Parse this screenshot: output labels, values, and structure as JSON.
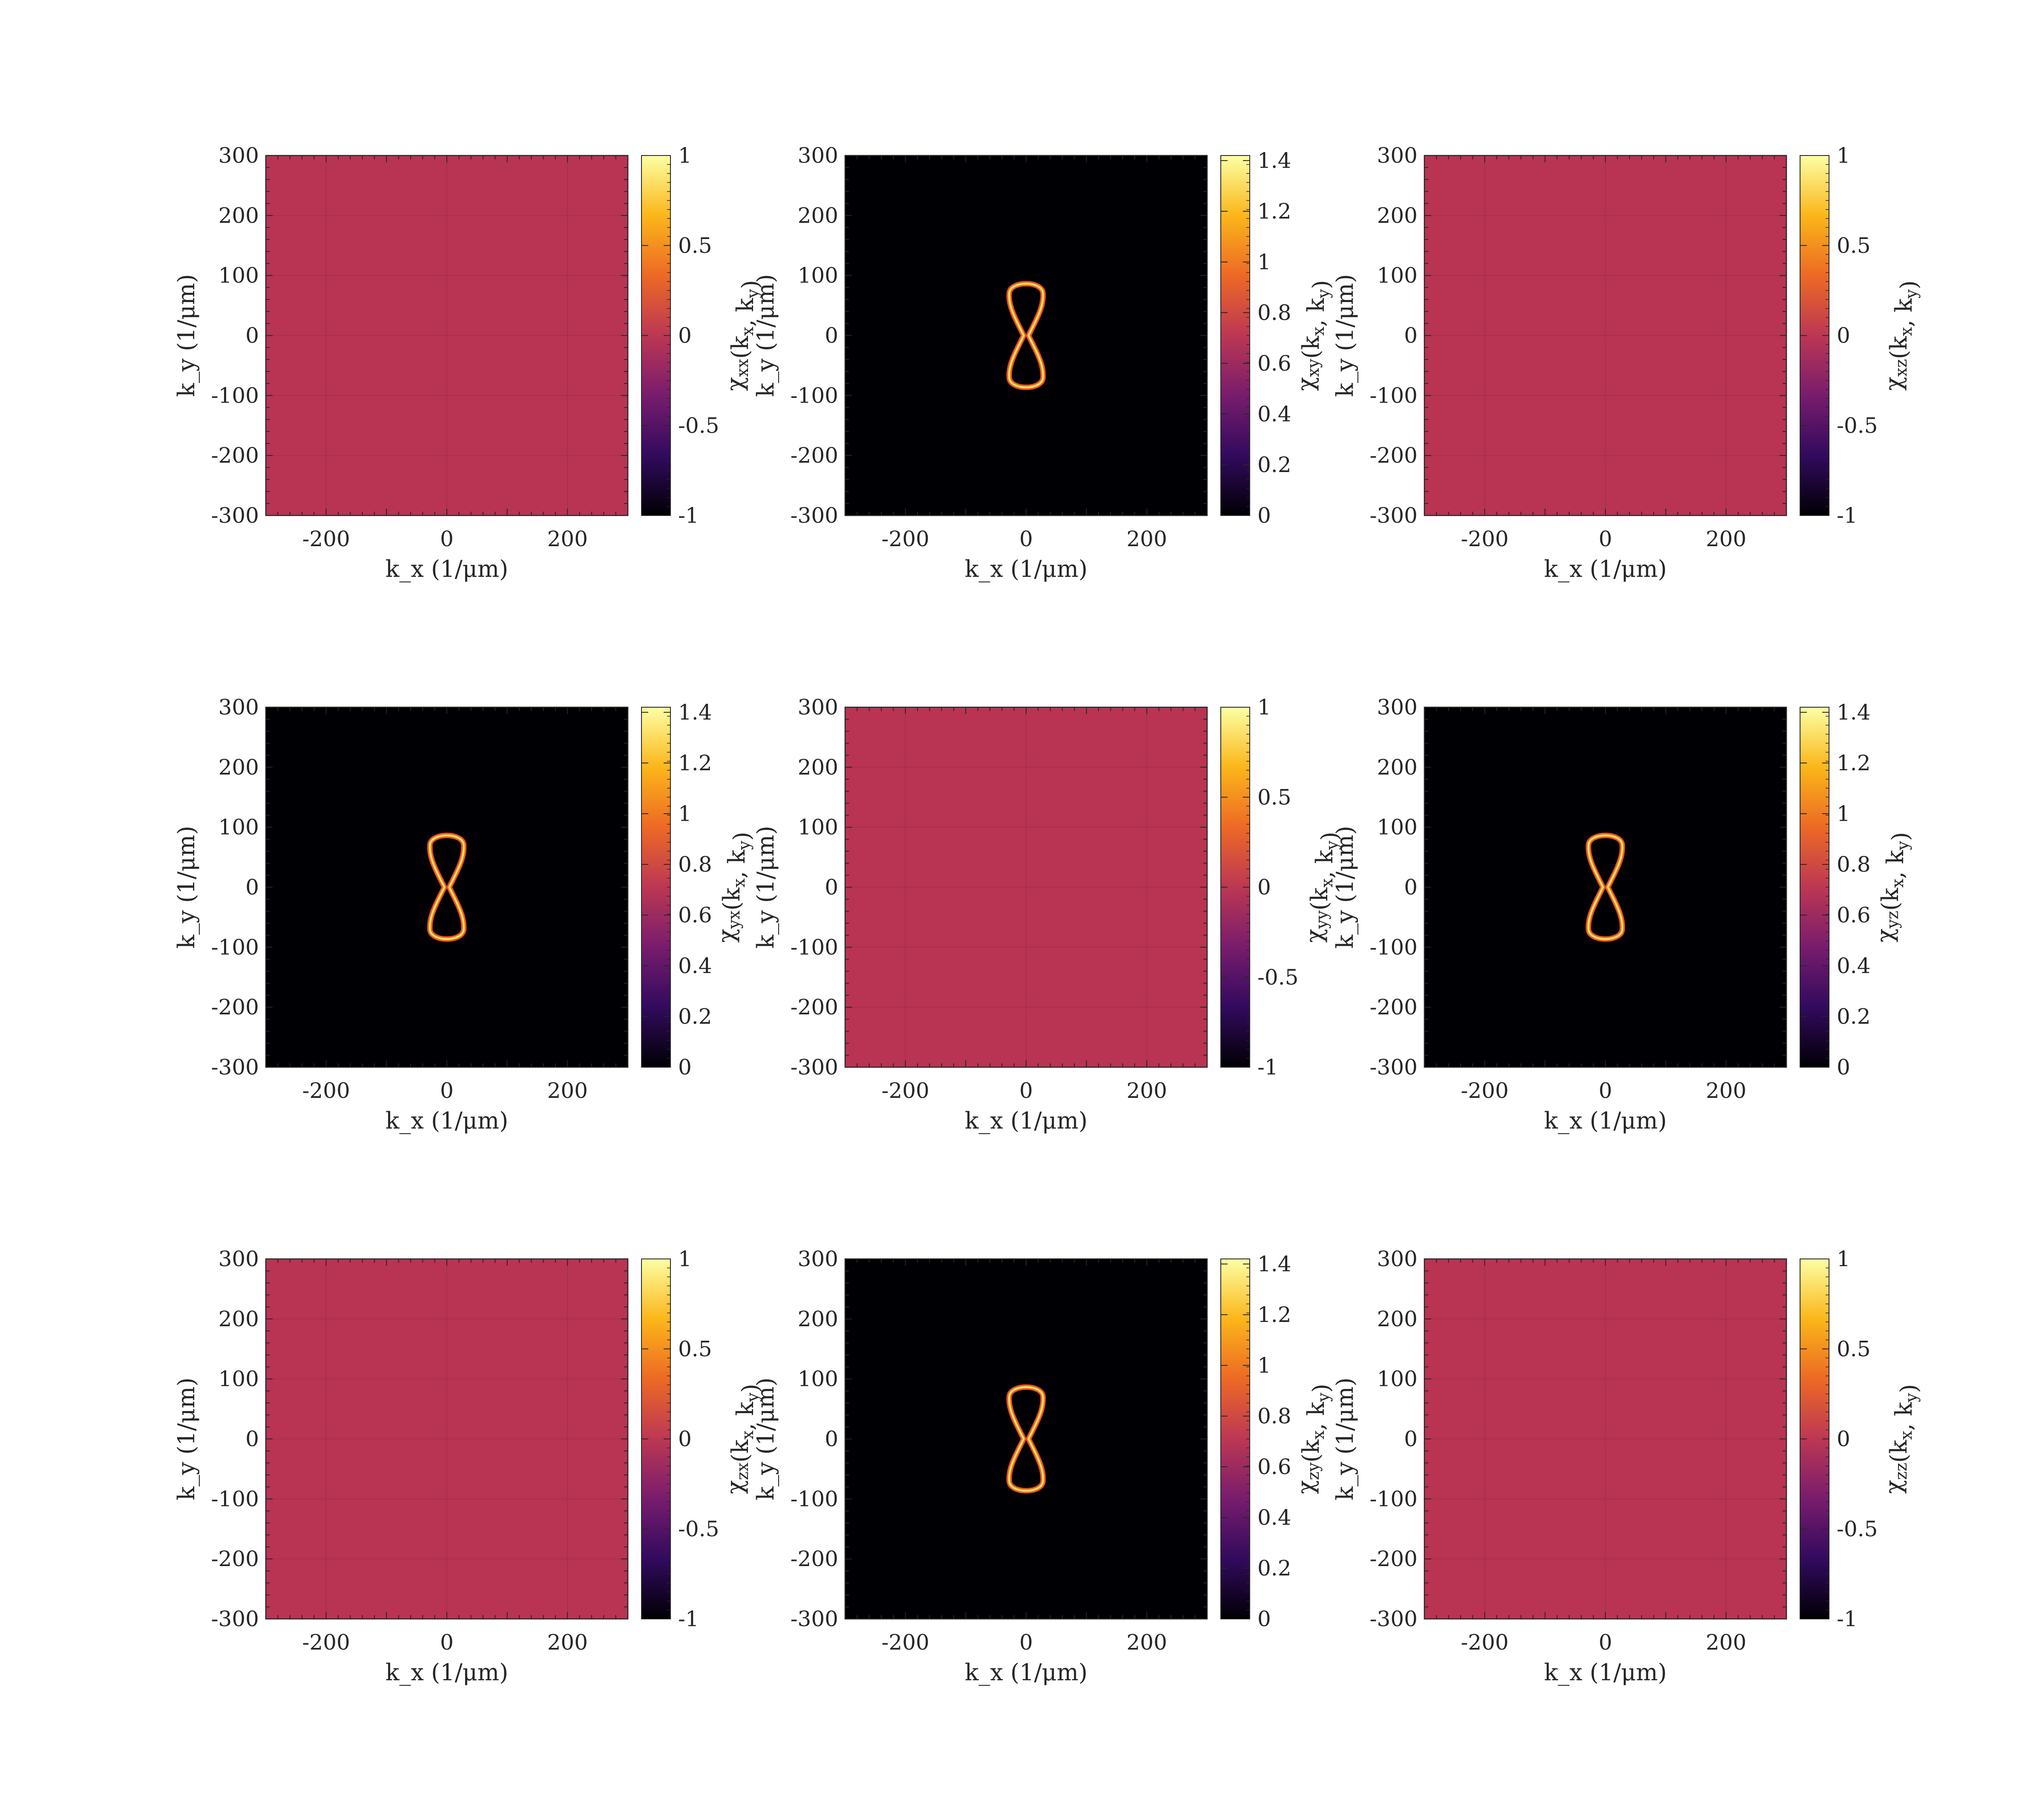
{
  "figure": {
    "background": "#ffffff",
    "colormap": "inferno",
    "colormap_stops": [
      "#000004",
      "#320a5e",
      "#781c6d",
      "#bc3754",
      "#ed6925",
      "#fbb61a",
      "#fcffa4"
    ],
    "uniform_fill": "#b83452",
    "ring_color": "#f7a21c"
  },
  "chart_data": [
    {
      "type": "heatmap",
      "panel": "xx",
      "row": 0,
      "col": 0,
      "xlabel": "k_x (1/μm)",
      "ylabel": "k_y (1/μm)",
      "xlim": [
        -300,
        300
      ],
      "ylim": [
        -300,
        300
      ],
      "xticks": [
        "-200",
        "0",
        "200"
      ],
      "yticks": [
        "-300",
        "-200",
        "-100",
        "0",
        "100",
        "200",
        "300"
      ],
      "colorbar": {
        "label": "χ_xx(k_x, k_y)",
        "label_parts": [
          [
            "χ",
            "xx"
          ],
          [
            "(k",
            "x"
          ],
          [
            ", k",
            "y"
          ],
          [
            ")",
            ""
          ]
        ],
        "range": [
          -1,
          1
        ],
        "ticks": [
          "-1",
          "-0.5",
          "0",
          "0.5",
          "1"
        ]
      },
      "field": {
        "kind": "uniform",
        "value": 0
      }
    },
    {
      "type": "heatmap",
      "panel": "xy",
      "row": 0,
      "col": 1,
      "xlabel": "k_x (1/μm)",
      "ylabel": "k_y (1/μm)",
      "xlim": [
        -300,
        300
      ],
      "ylim": [
        -300,
        300
      ],
      "xticks": [
        "-200",
        "0",
        "200"
      ],
      "yticks": [
        "-300",
        "-200",
        "-100",
        "0",
        "100",
        "200",
        "300"
      ],
      "colorbar": {
        "label": "χ_xy(k_x, k_y)",
        "label_parts": [
          [
            "χ",
            "xy"
          ],
          [
            "(k",
            "x"
          ],
          [
            ", k",
            "y"
          ],
          [
            ")",
            ""
          ]
        ],
        "range": [
          0,
          1.42
        ],
        "ticks": [
          "0",
          "0.2",
          "0.4",
          "0.6",
          "0.8",
          "1",
          "1.2",
          "1.4"
        ]
      },
      "field": {
        "kind": "peanut_ring",
        "background_value": 0,
        "ring_value": 1.1,
        "extent_ky": [
          -90,
          90
        ],
        "lobe_halfwidth_kx": 28,
        "waist_kx": 4
      }
    },
    {
      "type": "heatmap",
      "panel": "xz",
      "row": 0,
      "col": 2,
      "xlabel": "k_x (1/μm)",
      "ylabel": "k_y (1/μm)",
      "xlim": [
        -300,
        300
      ],
      "ylim": [
        -300,
        300
      ],
      "xticks": [
        "-200",
        "0",
        "200"
      ],
      "yticks": [
        "-300",
        "-200",
        "-100",
        "0",
        "100",
        "200",
        "300"
      ],
      "colorbar": {
        "label": "χ_xz(k_x, k_y)",
        "label_parts": [
          [
            "χ",
            "xz"
          ],
          [
            "(k",
            "x"
          ],
          [
            ", k",
            "y"
          ],
          [
            ")",
            ""
          ]
        ],
        "range": [
          -1,
          1
        ],
        "ticks": [
          "-1",
          "-0.5",
          "0",
          "0.5",
          "1"
        ]
      },
      "field": {
        "kind": "uniform",
        "value": 0
      }
    },
    {
      "type": "heatmap",
      "panel": "yx",
      "row": 1,
      "col": 0,
      "xlabel": "k_x (1/μm)",
      "ylabel": "k_y (1/μm)",
      "xlim": [
        -300,
        300
      ],
      "ylim": [
        -300,
        300
      ],
      "xticks": [
        "-200",
        "0",
        "200"
      ],
      "yticks": [
        "-300",
        "-200",
        "-100",
        "0",
        "100",
        "200",
        "300"
      ],
      "colorbar": {
        "label": "χ_yx(k_x, k_y)",
        "label_parts": [
          [
            "χ",
            "yx"
          ],
          [
            "(k",
            "x"
          ],
          [
            ", k",
            "y"
          ],
          [
            ")",
            ""
          ]
        ],
        "range": [
          0,
          1.42
        ],
        "ticks": [
          "0",
          "0.2",
          "0.4",
          "0.6",
          "0.8",
          "1",
          "1.2",
          "1.4"
        ]
      },
      "field": {
        "kind": "peanut_ring",
        "background_value": 0,
        "ring_value": 1.1,
        "extent_ky": [
          -90,
          90
        ],
        "lobe_halfwidth_kx": 28,
        "waist_kx": 4
      }
    },
    {
      "type": "heatmap",
      "panel": "yy",
      "row": 1,
      "col": 1,
      "xlabel": "k_x (1/μm)",
      "ylabel": "k_y (1/μm)",
      "xlim": [
        -300,
        300
      ],
      "ylim": [
        -300,
        300
      ],
      "xticks": [
        "-200",
        "0",
        "200"
      ],
      "yticks": [
        "-300",
        "-200",
        "-100",
        "0",
        "100",
        "200",
        "300"
      ],
      "colorbar": {
        "label": "χ_yy(k_x, k_y)",
        "label_parts": [
          [
            "χ",
            "yy"
          ],
          [
            "(k",
            "x"
          ],
          [
            ", k",
            "y"
          ],
          [
            ")",
            ""
          ]
        ],
        "range": [
          -1,
          1
        ],
        "ticks": [
          "-1",
          "-0.5",
          "0",
          "0.5",
          "1"
        ]
      },
      "field": {
        "kind": "uniform",
        "value": 0
      }
    },
    {
      "type": "heatmap",
      "panel": "yz",
      "row": 1,
      "col": 2,
      "xlabel": "k_x (1/μm)",
      "ylabel": "k_y (1/μm)",
      "xlim": [
        -300,
        300
      ],
      "ylim": [
        -300,
        300
      ],
      "xticks": [
        "-200",
        "0",
        "200"
      ],
      "yticks": [
        "-300",
        "-200",
        "-100",
        "0",
        "100",
        "200",
        "300"
      ],
      "colorbar": {
        "label": "χ_yz(k_x, k_y)",
        "label_parts": [
          [
            "χ",
            "yz"
          ],
          [
            "(k",
            "x"
          ],
          [
            ", k",
            "y"
          ],
          [
            ")",
            ""
          ]
        ],
        "range": [
          0,
          1.42
        ],
        "ticks": [
          "0",
          "0.2",
          "0.4",
          "0.6",
          "0.8",
          "1",
          "1.2",
          "1.4"
        ]
      },
      "field": {
        "kind": "peanut_ring",
        "background_value": 0,
        "ring_value": 1.1,
        "extent_ky": [
          -90,
          90
        ],
        "lobe_halfwidth_kx": 28,
        "waist_kx": 4
      }
    },
    {
      "type": "heatmap",
      "panel": "zx",
      "row": 2,
      "col": 0,
      "xlabel": "k_x (1/μm)",
      "ylabel": "k_y (1/μm)",
      "xlim": [
        -300,
        300
      ],
      "ylim": [
        -300,
        300
      ],
      "xticks": [
        "-200",
        "0",
        "200"
      ],
      "yticks": [
        "-300",
        "-200",
        "-100",
        "0",
        "100",
        "200",
        "300"
      ],
      "colorbar": {
        "label": "χ_zx(k_x, k_y)",
        "label_parts": [
          [
            "χ",
            "zx"
          ],
          [
            "(k",
            "x"
          ],
          [
            ", k",
            "y"
          ],
          [
            ")",
            ""
          ]
        ],
        "range": [
          -1,
          1
        ],
        "ticks": [
          "-1",
          "-0.5",
          "0",
          "0.5",
          "1"
        ]
      },
      "field": {
        "kind": "uniform",
        "value": 0
      }
    },
    {
      "type": "heatmap",
      "panel": "zy",
      "row": 2,
      "col": 1,
      "xlabel": "k_x (1/μm)",
      "ylabel": "k_y (1/μm)",
      "xlim": [
        -300,
        300
      ],
      "ylim": [
        -300,
        300
      ],
      "xticks": [
        "-200",
        "0",
        "200"
      ],
      "yticks": [
        "-300",
        "-200",
        "-100",
        "0",
        "100",
        "200",
        "300"
      ],
      "colorbar": {
        "label": "χ_zy(k_x, k_y)",
        "label_parts": [
          [
            "χ",
            "zy"
          ],
          [
            "(k",
            "x"
          ],
          [
            ", k",
            "y"
          ],
          [
            ")",
            ""
          ]
        ],
        "range": [
          0,
          1.42
        ],
        "ticks": [
          "0",
          "0.2",
          "0.4",
          "0.6",
          "0.8",
          "1",
          "1.2",
          "1.4"
        ]
      },
      "field": {
        "kind": "peanut_ring",
        "background_value": 0,
        "ring_value": 1.1,
        "extent_ky": [
          -90,
          90
        ],
        "lobe_halfwidth_kx": 28,
        "waist_kx": 4
      }
    },
    {
      "type": "heatmap",
      "panel": "zz",
      "row": 2,
      "col": 2,
      "xlabel": "k_x (1/μm)",
      "ylabel": "k_y (1/μm)",
      "xlim": [
        -300,
        300
      ],
      "ylim": [
        -300,
        300
      ],
      "xticks": [
        "-200",
        "0",
        "200"
      ],
      "yticks": [
        "-300",
        "-200",
        "-100",
        "0",
        "100",
        "200",
        "300"
      ],
      "colorbar": {
        "label": "χ_zz(k_x, k_y)",
        "label_parts": [
          [
            "χ",
            "zz"
          ],
          [
            "(k",
            "x"
          ],
          [
            ", k",
            "y"
          ],
          [
            ")",
            ""
          ]
        ],
        "range": [
          -1,
          1
        ],
        "ticks": [
          "-1",
          "-0.5",
          "0",
          "0.5",
          "1"
        ]
      },
      "field": {
        "kind": "uniform",
        "value": 0
      }
    }
  ]
}
